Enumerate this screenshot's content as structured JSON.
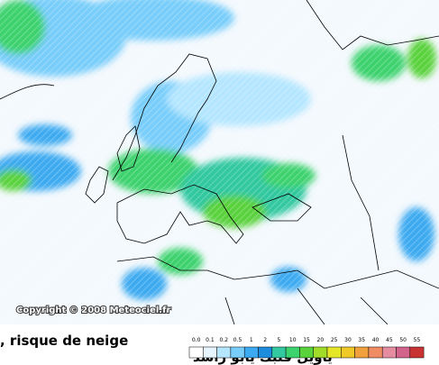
{
  "copyright": "Copyright © 2008 Meteociel.fr",
  "caption": ", risque de neige",
  "arabic_caption": "ياويل قلبك يابو راشد",
  "legend": {
    "items": [
      {
        "label": "0.0",
        "color": "#ffffff"
      },
      {
        "label": "0.1",
        "color": "#e6f5ff"
      },
      {
        "label": "0.2",
        "color": "#b4e6ff"
      },
      {
        "label": "0.5",
        "color": "#78cdfa"
      },
      {
        "label": "1",
        "color": "#3caaf0"
      },
      {
        "label": "2",
        "color": "#1e8cdc"
      },
      {
        "label": "5",
        "color": "#32c8a0"
      },
      {
        "label": "10",
        "color": "#3cd26e"
      },
      {
        "label": "15",
        "color": "#5ad23c"
      },
      {
        "label": "20",
        "color": "#a0dc28"
      },
      {
        "label": "25",
        "color": "#e6e628"
      },
      {
        "label": "30",
        "color": "#f0c828"
      },
      {
        "label": "35",
        "color": "#f0a03c"
      },
      {
        "label": "40",
        "color": "#f08c64"
      },
      {
        "label": "45",
        "color": "#e68ca0"
      },
      {
        "label": "50",
        "color": "#d2648c"
      },
      {
        "label": "55",
        "color": "#c83232"
      }
    ]
  }
}
